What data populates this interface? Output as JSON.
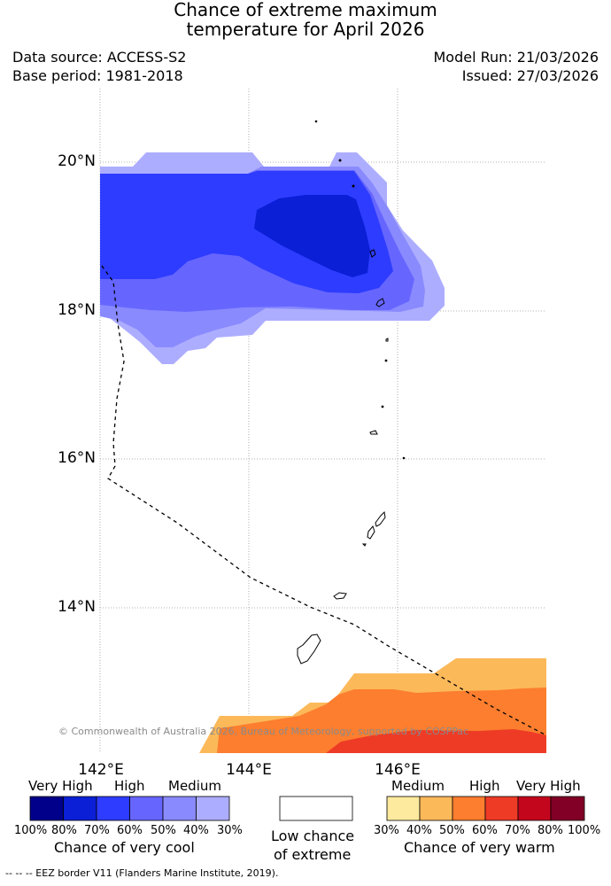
{
  "title_line1": "Chance of extreme maximum",
  "title_line2": "temperature for April 2026",
  "data_source": "Data source: ACCESS-S2",
  "base_period": "Base period: 1981-2018",
  "model_run": "Model Run: 21/03/2026",
  "issued": "Issued: 27/03/2026",
  "lat_labels": [
    "20°N",
    "18°N",
    "16°N",
    "14°N"
  ],
  "lon_labels": [
    "142°E",
    "144°E",
    "146°E"
  ],
  "copyright": "© Commonwealth of Australia 2026, Bureau of Meteorology, supported by COSPPac",
  "legend": {
    "cool": {
      "headers": [
        "Very High",
        "High",
        "Medium"
      ],
      "ticks": [
        "100%",
        "80%",
        "70%",
        "60%",
        "50%",
        "40%",
        "30%"
      ],
      "colors": [
        "#00008b",
        "#0a1fd6",
        "#2e3cff",
        "#6666ff",
        "#8a8aff",
        "#adadff"
      ],
      "caption": "Chance of very cool"
    },
    "neutral": {
      "line1": "Low chance",
      "line2": "of extreme"
    },
    "warm": {
      "headers": [
        "Medium",
        "High",
        "Very High"
      ],
      "ticks": [
        "30%",
        "40%",
        "50%",
        "60%",
        "70%",
        "80%",
        "100%"
      ],
      "colors": [
        "#feea9e",
        "#fcb95a",
        "#fc7e2e",
        "#ee3b26",
        "#c4061d",
        "#820026"
      ],
      "caption": "Chance of very warm"
    }
  },
  "footnote": "--  --  -- EEZ border V11 (Flanders Marine Institute, 2019)."
}
